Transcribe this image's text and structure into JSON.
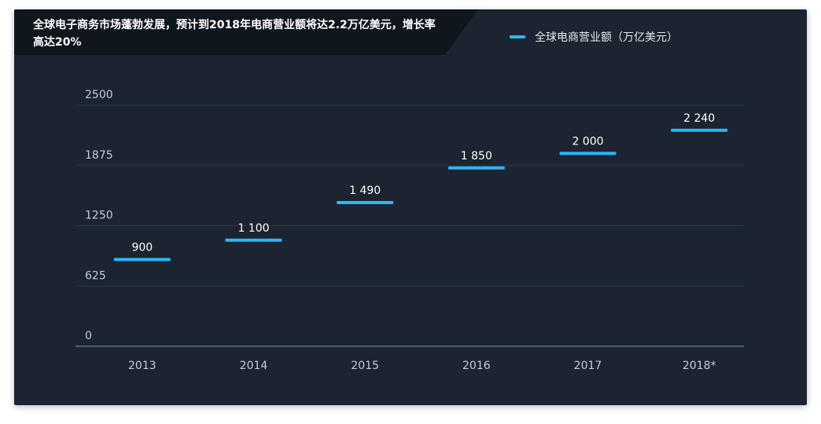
{
  "header": {
    "title": "全球电子商务市场蓬勃发展，预计到2018年电商营业额将达2.2万亿美元，增长率高达20%"
  },
  "colors": {
    "background": "#1b2430",
    "title_band": "#10161e",
    "series": "#29b6f6",
    "gridline": "#2e3946",
    "axis": "#8a949e"
  },
  "chart_data": {
    "type": "bar",
    "categories": [
      "2013",
      "2014",
      "2015",
      "2016",
      "2017",
      "2018*"
    ],
    "series": [
      {
        "name": "全球电商营业额（万亿美元）",
        "values": [
          900,
          1100,
          1490,
          1850,
          2000,
          2240
        ],
        "labels": [
          "900",
          "1 100",
          "1 490",
          "1 850",
          "2 000",
          "2 240"
        ]
      }
    ],
    "yticks": [
      "0",
      "625",
      "1250",
      "1875",
      "2500"
    ],
    "ylim": [
      0,
      2500
    ],
    "grid": true,
    "legend": "top-right",
    "marker": "horizontal-dash"
  }
}
